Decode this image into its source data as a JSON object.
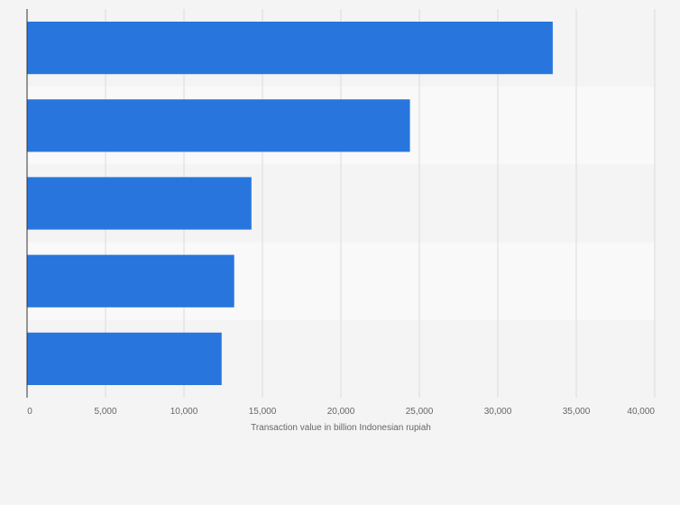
{
  "chart_data": {
    "type": "bar",
    "orientation": "horizontal",
    "title": "",
    "categories": [
      "",
      "",
      "",
      "",
      ""
    ],
    "values": [
      33500,
      24400,
      14300,
      13200,
      12400
    ],
    "xlabel": "Transaction value in billion Indonesian rupiah",
    "ylabel": "",
    "xlim": [
      0,
      40000
    ],
    "ticks": [
      0,
      5000,
      10000,
      15000,
      20000,
      25000,
      30000,
      35000,
      40000
    ],
    "tick_labels": [
      "0",
      "5,000",
      "10,000",
      "15,000",
      "20,000",
      "25,000",
      "30,000",
      "35,000",
      "40,000"
    ],
    "grid": true,
    "colors": {
      "bar": "#2876dd",
      "band_dark": "#f4f4f4",
      "band_light": "#f9f9f9",
      "grid": "#dcdcdc",
      "axis": "#333333"
    }
  }
}
